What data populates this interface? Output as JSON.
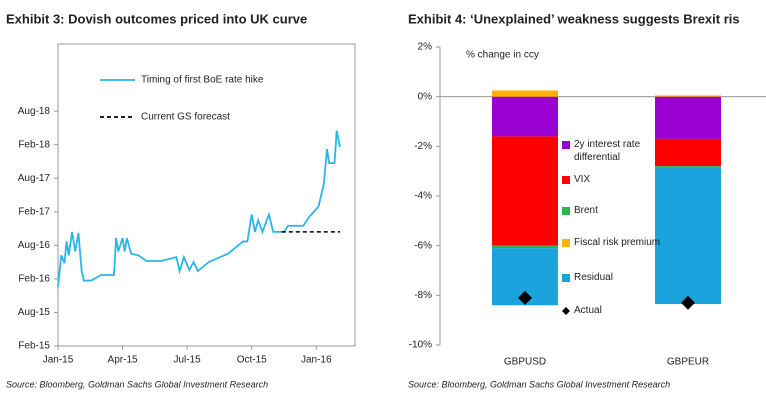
{
  "chart_data": [
    {
      "type": "line",
      "title": "Exhibit 3: Dovish outcomes priced into UK curve",
      "source": "Source: Bloomberg, Goldman Sachs Global Investment Research",
      "xlim": [
        0,
        13.8
      ],
      "xticks": [
        {
          "value": 0,
          "label": "Jan-15"
        },
        {
          "value": 3,
          "label": "Apr-15"
        },
        {
          "value": 6,
          "label": "Jul-15"
        },
        {
          "value": 9,
          "label": "Oct-15"
        },
        {
          "value": 12,
          "label": "Jan-16"
        }
      ],
      "ylim": [
        -12,
        42
      ],
      "yticks": [
        {
          "value": -12,
          "label": "Feb-15"
        },
        {
          "value": -6,
          "label": "Aug-15"
        },
        {
          "value": 0,
          "label": "Feb-16"
        },
        {
          "value": 6,
          "label": "Aug-16"
        },
        {
          "value": 12,
          "label": "Feb-17"
        },
        {
          "value": 18,
          "label": "Aug-17"
        },
        {
          "value": 24,
          "label": "Feb-18"
        },
        {
          "value": 30,
          "label": "Aug-18"
        }
      ],
      "series": [
        {
          "name": "Timing of first BoE rate hike",
          "color": "#29b6e8",
          "style": "solid",
          "x": [
            0,
            0.15,
            0.3,
            0.4,
            0.5,
            0.65,
            0.8,
            0.95,
            1.1,
            1.2,
            1.55,
            2.0,
            2.6,
            2.7,
            2.8,
            3.0,
            3.1,
            3.2,
            3.4,
            3.75,
            4.1,
            4.8,
            5.5,
            5.65,
            5.85,
            6.1,
            6.3,
            6.5,
            7.0,
            7.9,
            8.6,
            8.8,
            9.0,
            9.15,
            9.3,
            9.5,
            9.8,
            10.0,
            10.5,
            10.7,
            11.4,
            11.65,
            12.1,
            12.35,
            12.5,
            12.6,
            12.85,
            12.95,
            13.1
          ],
          "values": [
            -1.4,
            4.2,
            2.8,
            6.7,
            4.2,
            8.4,
            4.9,
            8.2,
            1.4,
            -0.3,
            -0.3,
            0.7,
            0.7,
            7.3,
            4.9,
            7.3,
            4.9,
            7.3,
            4.5,
            4.2,
            3.2,
            3.2,
            3.9,
            1.4,
            3.9,
            1.6,
            3.0,
            1.4,
            3.0,
            4.5,
            6.7,
            6.7,
            11.5,
            8.4,
            10.5,
            8.4,
            11.5,
            8.4,
            8.4,
            9.5,
            9.5,
            11.0,
            12.9,
            16.9,
            23.2,
            20.7,
            20.7,
            26.5,
            23.6
          ]
        },
        {
          "name": "Current GS forecast",
          "color": "#000000",
          "style": "dashed",
          "x": [
            10.4,
            13.1
          ],
          "values": [
            8.4,
            8.4
          ]
        }
      ]
    },
    {
      "type": "bar",
      "title": "Exhibit 4: ‘Unexplained’ weakness suggests Brexit ris",
      "source": "Source: Bloomberg, Goldman Sachs Global Investment Research",
      "annotation": "% change in ccy",
      "categories": [
        "GBPUSD",
        "GBPEUR"
      ],
      "ylim": [
        -10,
        2
      ],
      "yticks": [
        {
          "value": 2,
          "label": "2%"
        },
        {
          "value": 0,
          "label": "0%"
        },
        {
          "value": -2,
          "label": "-2%"
        },
        {
          "value": -4,
          "label": "-4%"
        },
        {
          "value": -6,
          "label": "-6%"
        },
        {
          "value": -8,
          "label": "-8%"
        },
        {
          "value": -10,
          "label": "-10%"
        }
      ],
      "series": [
        {
          "name": "2y interest rate differential",
          "color": "#9b00d3",
          "values": [
            -1.6,
            -1.7
          ]
        },
        {
          "name": "VIX",
          "color": "#ff0000",
          "values": [
            -4.4,
            -1.1
          ]
        },
        {
          "name": "Brent",
          "color": "#2db34a",
          "values": [
            -0.1,
            -0.05
          ]
        },
        {
          "name": "Fiscal risk premium",
          "color": "#ffb300",
          "values": [
            0.25,
            0.05
          ]
        },
        {
          "name": "Residual",
          "color": "#1aa3dd",
          "values": [
            -2.3,
            -5.5
          ]
        },
        {
          "name": "Actual",
          "color": "#000000",
          "marker": "diamond",
          "values": [
            -8.1,
            -8.3
          ]
        }
      ]
    }
  ]
}
